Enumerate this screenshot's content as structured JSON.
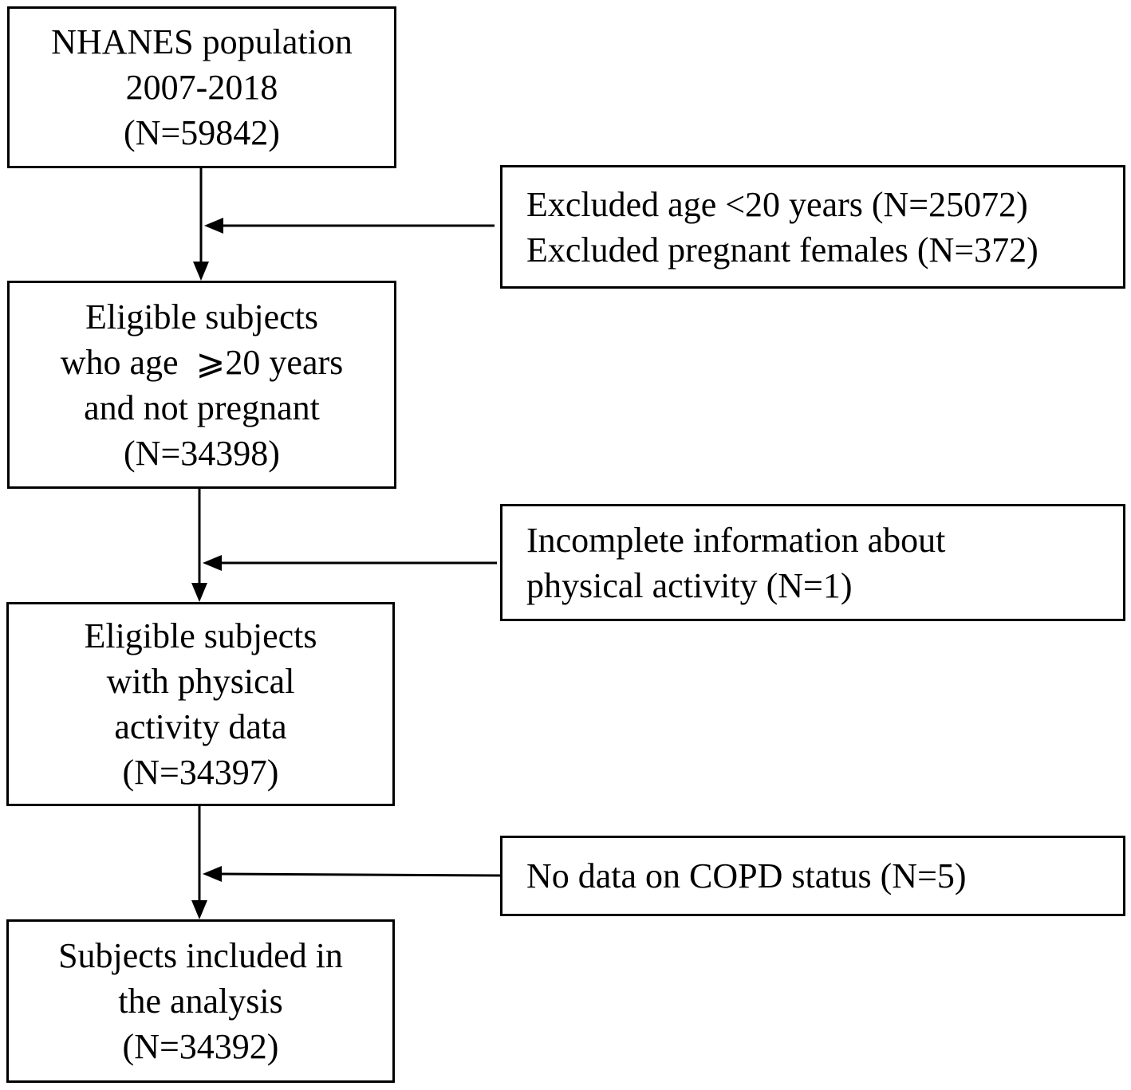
{
  "steps": [
    {
      "lines": [
        "NHANES population",
        "2007-2018",
        "(N=59842)"
      ]
    },
    {
      "lines": [
        "Eligible subjects",
        "who age  ⩾20 years",
        "and not pregnant",
        "(N=34398)"
      ]
    },
    {
      "lines": [
        "Eligible subjects",
        "with physical",
        "activity data",
        "(N=34397)"
      ]
    },
    {
      "lines": [
        "Subjects included in",
        "the analysis",
        "(N=34392)"
      ]
    }
  ],
  "exclusions": [
    {
      "lines": [
        "Excluded age <20 years (N=25072)",
        "Excluded pregnant females (N=372)"
      ]
    },
    {
      "lines": [
        "Incomplete information about",
        "physical activity (N=1)"
      ]
    },
    {
      "lines": [
        "No data on COPD status (N=5)"
      ]
    }
  ]
}
